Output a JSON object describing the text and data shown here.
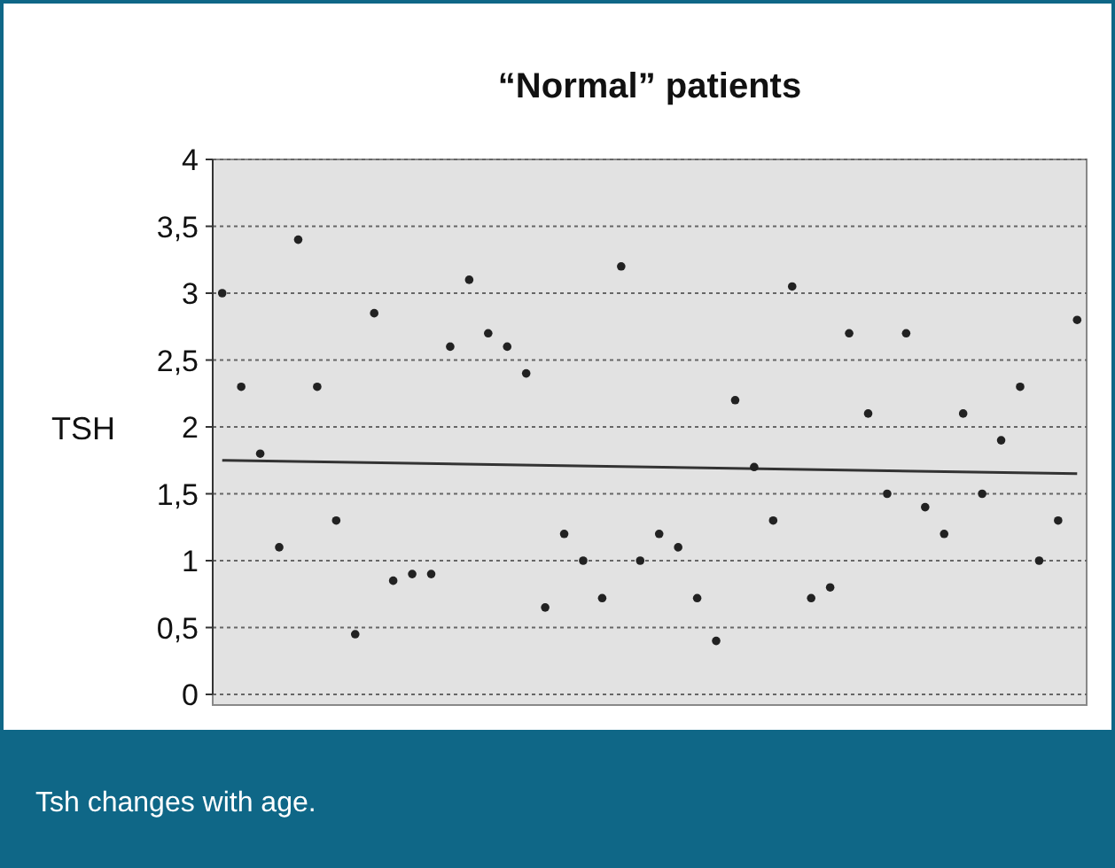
{
  "chart_data": {
    "type": "scatter",
    "title": "“Normal” patients",
    "ylabel": "TSH",
    "annotations": [
      "Tsh changes with age."
    ],
    "categories": [
      null,
      null,
      null,
      null,
      null,
      null,
      null,
      null,
      null,
      null,
      null,
      null,
      null,
      null,
      null,
      null,
      null,
      null,
      null,
      null,
      null,
      null,
      null,
      null,
      null,
      null,
      null,
      null,
      null,
      null,
      null,
      null,
      null,
      null,
      null,
      null,
      null,
      null,
      null,
      null,
      null,
      null,
      null,
      null,
      null,
      null
    ],
    "series": [
      {
        "marker": "circle",
        "color": "#222222",
        "values": [
          3.0,
          2.3,
          1.8,
          1.1,
          3.4,
          2.3,
          1.3,
          0.45,
          2.85,
          0.85,
          0.9,
          0.9,
          2.6,
          3.1,
          2.7,
          2.6,
          2.4,
          0.65,
          1.2,
          1.0,
          0.72,
          3.2,
          1.0,
          1.2,
          1.1,
          0.72,
          0.4,
          2.2,
          1.7,
          1.3,
          3.05,
          0.72,
          0.8,
          2.7,
          2.1,
          1.5,
          2.7,
          1.4,
          1.2,
          2.1,
          1.5,
          1.9,
          2.3,
          1.0,
          1.3,
          2.8
        ]
      },
      {
        "type": "line",
        "marker": "none",
        "color": "#333333",
        "values": [
          1.75,
          null,
          null,
          null,
          null,
          null,
          null,
          null,
          null,
          null,
          null,
          null,
          null,
          null,
          null,
          null,
          null,
          null,
          null,
          null,
          null,
          null,
          null,
          null,
          null,
          null,
          null,
          null,
          null,
          null,
          null,
          null,
          null,
          null,
          null,
          null,
          null,
          null,
          null,
          null,
          null,
          null,
          null,
          null,
          null,
          1.65
        ]
      }
    ],
    "ylim": [
      0,
      4
    ],
    "yticks": [
      0,
      {
        "value": 0.5,
        "label": "0,5"
      },
      1,
      {
        "value": 1.5,
        "label": "1,5"
      },
      2,
      {
        "value": 2.5,
        "label": "2,5"
      },
      3,
      {
        "value": 3.5,
        "label": "3,5"
      },
      4
    ],
    "grid": "y"
  }
}
